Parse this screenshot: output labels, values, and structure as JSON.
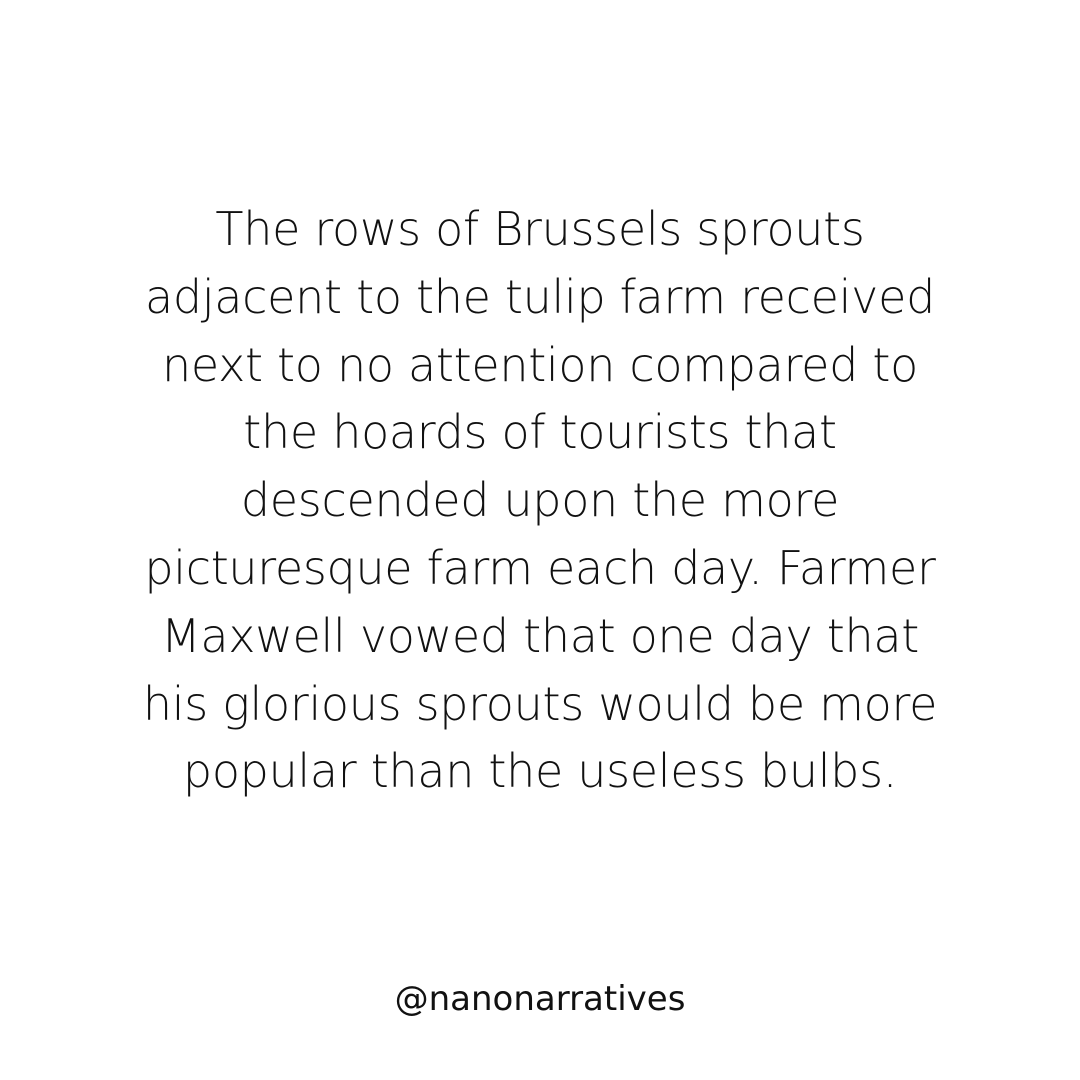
{
  "post": {
    "story_lines": [
      "The rows of Brussels sprouts",
      "adjacent to the tulip farm received",
      "next to no attention compared to",
      "the hoards of tourists that",
      "descended upon the more",
      "picturesque farm each day. Farmer",
      "Maxwell vowed that one day that",
      "his glorious sprouts would be more",
      "popular than the useless bulbs."
    ],
    "handle": "@nanonarratives"
  },
  "colors": {
    "background": "#ffffff",
    "text": "#111111"
  }
}
